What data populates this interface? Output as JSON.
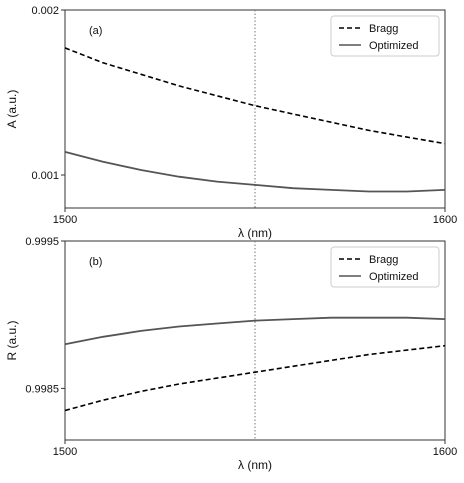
{
  "chart_data": [
    {
      "type": "line",
      "panel_label": "(a)",
      "xlabel": "λ (nm)",
      "ylabel": "A (a.u.)",
      "xlim": [
        1500,
        1600
      ],
      "ylim": [
        0.0008,
        0.002
      ],
      "x_ticks": [
        "1500",
        "1600"
      ],
      "y_ticks": [
        "0.001",
        "0.002"
      ],
      "y_tick_values": [
        0.001,
        0.002
      ],
      "vline_x": 1550,
      "legend": {
        "placement": "top-right",
        "entries": [
          "Bragg",
          "Optimized"
        ]
      },
      "grid": false,
      "series": [
        {
          "name": "Bragg",
          "style": "dashed",
          "color": "#000000",
          "x": [
            1500,
            1510,
            1520,
            1530,
            1540,
            1550,
            1560,
            1570,
            1580,
            1590,
            1600
          ],
          "values": [
            0.00177,
            0.00168,
            0.00161,
            0.00154,
            0.00148,
            0.00142,
            0.00137,
            0.00132,
            0.00127,
            0.00123,
            0.00119
          ]
        },
        {
          "name": "Optimized",
          "style": "solid",
          "color": "#555555",
          "x": [
            1500,
            1510,
            1520,
            1530,
            1540,
            1550,
            1560,
            1570,
            1580,
            1590,
            1600
          ],
          "values": [
            0.00114,
            0.00108,
            0.00103,
            0.00099,
            0.00096,
            0.00094,
            0.00092,
            0.00091,
            0.0009,
            0.0009,
            0.00091
          ]
        }
      ]
    },
    {
      "type": "line",
      "panel_label": "(b)",
      "xlabel": "λ (nm)",
      "ylabel": "R (a.u.)",
      "xlim": [
        1500,
        1600
      ],
      "ylim": [
        0.99815,
        0.9995
      ],
      "x_ticks": [
        "1500",
        "1600"
      ],
      "y_ticks": [
        "0.9985",
        "0.9995"
      ],
      "y_tick_values": [
        0.9985,
        0.9995
      ],
      "vline_x": 1550,
      "legend": {
        "placement": "top-right",
        "entries": [
          "Bragg",
          "Optimized"
        ]
      },
      "grid": false,
      "series": [
        {
          "name": "Bragg",
          "style": "dashed",
          "color": "#000000",
          "x": [
            1500,
            1510,
            1520,
            1530,
            1540,
            1550,
            1560,
            1570,
            1580,
            1590,
            1600
          ],
          "values": [
            0.99835,
            0.99842,
            0.99848,
            0.99853,
            0.99857,
            0.99861,
            0.99865,
            0.99869,
            0.99873,
            0.99876,
            0.99879
          ]
        },
        {
          "name": "Optimized",
          "style": "solid",
          "color": "#555555",
          "x": [
            1500,
            1510,
            1520,
            1530,
            1540,
            1550,
            1560,
            1570,
            1580,
            1590,
            1600
          ],
          "values": [
            0.9988,
            0.99885,
            0.99889,
            0.99892,
            0.99894,
            0.99896,
            0.99897,
            0.99898,
            0.99898,
            0.99898,
            0.99897
          ]
        }
      ]
    }
  ]
}
